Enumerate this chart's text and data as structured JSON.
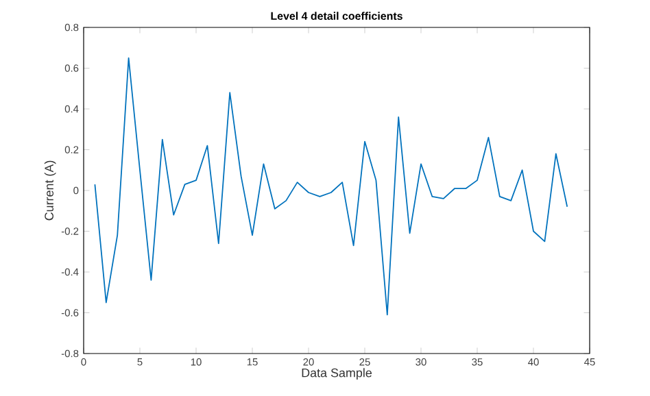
{
  "chart_data": {
    "type": "line",
    "title": "Level 4 detail coefficients",
    "xlabel": "Data Sample",
    "ylabel": "Current (A)",
    "x": [
      1,
      2,
      3,
      4,
      5,
      6,
      7,
      8,
      9,
      10,
      11,
      12,
      13,
      14,
      15,
      16,
      17,
      18,
      19,
      20,
      21,
      22,
      23,
      24,
      25,
      26,
      27,
      28,
      29,
      30,
      31,
      32,
      33,
      34,
      35,
      36,
      37,
      38,
      39,
      40,
      41,
      42,
      43
    ],
    "series": [
      {
        "color": "#0072bd",
        "values": [
          0.03,
          -0.55,
          -0.22,
          0.65,
          0.1,
          -0.44,
          0.25,
          -0.12,
          0.03,
          0.05,
          0.22,
          -0.26,
          0.48,
          0.07,
          -0.22,
          0.13,
          -0.09,
          -0.05,
          0.04,
          -0.01,
          -0.03,
          -0.01,
          0.04,
          -0.27,
          0.24,
          0.05,
          -0.61,
          0.36,
          -0.21,
          0.13,
          -0.03,
          -0.04,
          0.01,
          0.01,
          0.05,
          0.26,
          -0.03,
          -0.05,
          0.1,
          -0.2,
          -0.25,
          0.18,
          -0.08
        ]
      }
    ],
    "xlim": [
      0,
      45
    ],
    "ylim": [
      -0.8,
      0.8
    ],
    "xticks": [
      0,
      5,
      10,
      15,
      20,
      25,
      30,
      35,
      40,
      45
    ],
    "yticks": [
      -0.8,
      -0.6,
      -0.4,
      -0.2,
      0,
      0.2,
      0.4,
      0.6,
      0.8
    ],
    "grid": false,
    "legend": false,
    "marker": "none",
    "line_style": "solid"
  }
}
